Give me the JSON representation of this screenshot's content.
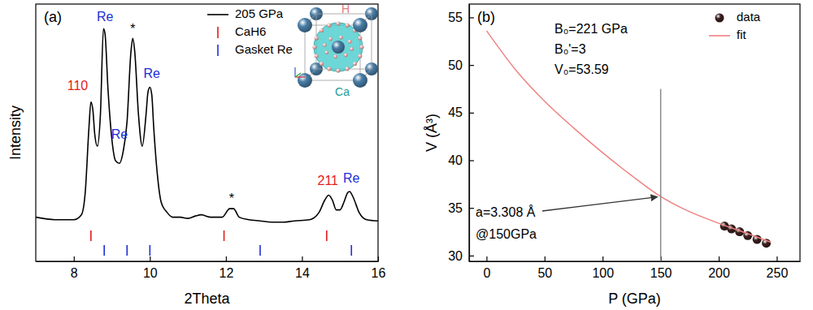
{
  "chart_data": [
    {
      "type": "line",
      "panel_label": "(a)",
      "x_label": "2Theta",
      "y_label": "Intensity",
      "xlim": [
        7,
        16
      ],
      "xticks": [
        8,
        10,
        12,
        14,
        16
      ],
      "ylim": [
        0,
        105
      ],
      "tick_labels": "x",
      "legend": "upper right",
      "series": [
        {
          "name": "205 GPa",
          "color": "#000000",
          "x": [
            7.0,
            7.5,
            8.0,
            8.2,
            8.3,
            8.4,
            8.45,
            8.5,
            8.55,
            8.62,
            8.7,
            8.78,
            8.82,
            8.9,
            9.0,
            9.1,
            9.2,
            9.3,
            9.4,
            9.5,
            9.55,
            9.6,
            9.7,
            9.8,
            9.9,
            9.95,
            10.0,
            10.05,
            10.1,
            10.2,
            10.3,
            10.45,
            10.6,
            10.8,
            11.0,
            11.2,
            11.35,
            11.6,
            11.9,
            12.1,
            12.2,
            12.35,
            12.6,
            12.9,
            13.2,
            13.5,
            13.8,
            14.2,
            14.45,
            14.6,
            14.7,
            14.8,
            14.9,
            15.0,
            15.1,
            15.2,
            15.25,
            15.35,
            15.5,
            15.7,
            16.0
          ],
          "values": [
            18,
            17,
            17,
            19,
            28,
            55,
            65,
            62,
            52,
            47,
            60,
            95,
            93,
            70,
            50,
            41,
            40,
            45,
            57,
            85,
            91,
            86,
            60,
            47,
            60,
            69,
            71,
            68,
            55,
            35,
            24,
            20,
            18,
            18,
            17.5,
            18.5,
            19,
            18,
            18,
            21.5,
            21.5,
            18,
            17,
            16.5,
            16,
            16,
            16.5,
            17,
            20,
            25,
            27,
            25,
            21,
            21,
            24,
            28,
            28.5,
            26,
            20,
            17,
            16.5
          ]
        },
        {
          "name": "CaH6",
          "color": "#e41a1c",
          "type": "tick",
          "x": [
            8.45,
            11.95,
            14.65
          ]
        },
        {
          "name": "Gasket Re",
          "color": "#1c2fd6",
          "type": "tick",
          "x": [
            8.8,
            9.4,
            10.0,
            12.9,
            15.3
          ]
        }
      ],
      "annotations": [
        {
          "text": "110",
          "x": 8.1,
          "y": 70,
          "color": "#e41a1c"
        },
        {
          "text": "Re",
          "x": 8.82,
          "y": 98,
          "color": "#1c2fd6"
        },
        {
          "text": "*",
          "x": 9.55,
          "y": 93,
          "color": "#000000"
        },
        {
          "text": "Re",
          "x": 9.2,
          "y": 50,
          "color": "#1c2fd6"
        },
        {
          "text": "Re",
          "x": 10.05,
          "y": 75,
          "color": "#1c2fd6"
        },
        {
          "text": "*",
          "x": 12.15,
          "y": 24,
          "color": "#000000"
        },
        {
          "text": "211",
          "x": 14.68,
          "y": 31,
          "color": "#e41a1c"
        },
        {
          "text": "Re",
          "x": 15.3,
          "y": 32,
          "color": "#1c2fd6"
        }
      ],
      "inset_labels": [
        {
          "text": "H",
          "color": "#e07a7a"
        },
        {
          "text": "Ca",
          "color": "#1a9a9a"
        }
      ]
    },
    {
      "type": "scatter",
      "panel_label": "(b)",
      "x_label": "P (GPa)",
      "y_label": "V (Å³)",
      "xlim": [
        -15,
        270
      ],
      "xticks": [
        0,
        50,
        100,
        150,
        200,
        250
      ],
      "ylim": [
        29.4,
        56.4
      ],
      "yticks": [
        30,
        35,
        40,
        45,
        50,
        55
      ],
      "legend": "upper right",
      "series": [
        {
          "name": "data",
          "color": "#3b1f1f",
          "marker": "sphere",
          "x": [
            205,
            211,
            218,
            225,
            233,
            241
          ],
          "values": [
            33.1,
            32.8,
            32.5,
            32.1,
            31.7,
            31.3
          ]
        },
        {
          "name": "fit",
          "type": "line",
          "color": "#f07f7f",
          "x": [
            0,
            25,
            50,
            75,
            100,
            125,
            150,
            175,
            200,
            225,
            245
          ],
          "values": [
            53.6,
            49.5,
            46.2,
            43.4,
            40.8,
            38.4,
            36.2,
            34.6,
            33.4,
            32.3,
            31.4
          ]
        }
      ],
      "fit_params": [
        "B₀=221 GPa",
        "B₀'=3",
        "V₀=53.59"
      ],
      "vline": 150,
      "annotation_text": [
        "a=3.308 Å",
        "@150GPa"
      ]
    }
  ]
}
